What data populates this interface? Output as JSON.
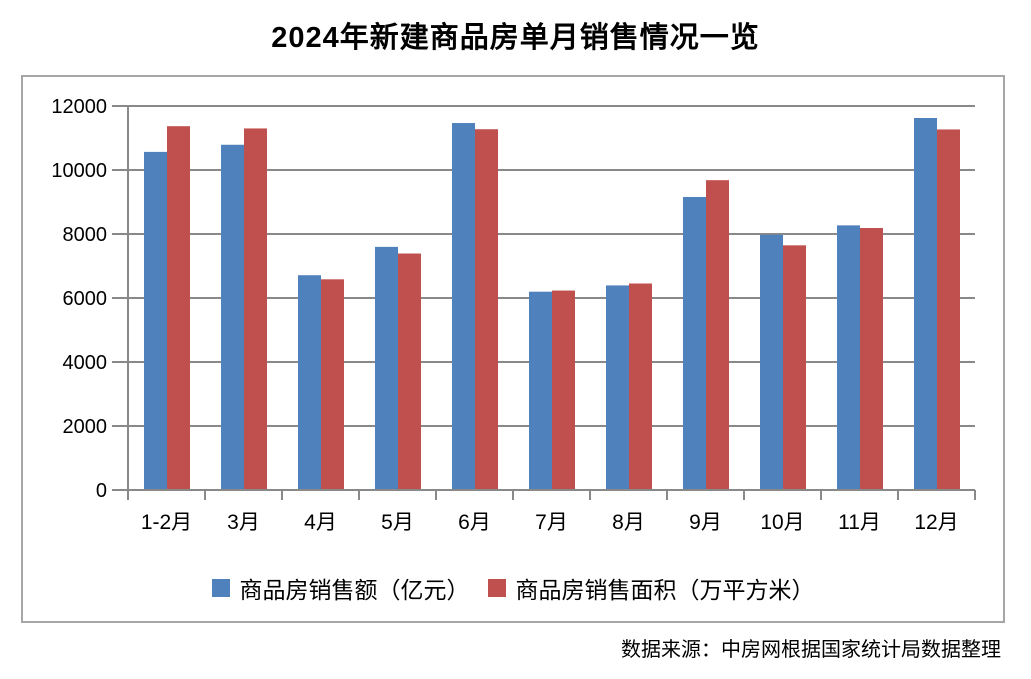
{
  "page": {
    "title": "2024年新建商品房单月销售情况一览",
    "source_note": "数据来源：中房网根据国家统计局数据整理"
  },
  "colors": {
    "series1_blue": "#4F81BD",
    "series2_red": "#C0504D",
    "gridline_gray": "#898989",
    "axis_gray": "#898989",
    "chart_border_gray": "#A6A6A6",
    "text_black": "#000000",
    "background_white": "#FFFFFF"
  },
  "chart_data": {
    "type": "bar",
    "title": "2024年新建商品房单月销售情况一览",
    "categories": [
      "1-2月",
      "3月",
      "4月",
      "5月",
      "6月",
      "7月",
      "8月",
      "9月",
      "10月",
      "11月",
      "12月"
    ],
    "series": [
      {
        "name": "商品房销售额（亿元）",
        "color": "#4F81BD",
        "values": [
          10566,
          10789,
          6712,
          7598,
          11468,
          6197,
          6393,
          9157,
          7975,
          8270,
          11625
        ]
      },
      {
        "name": "商品房销售面积（万平方米）",
        "color": "#C0504D",
        "values": [
          11369,
          11299,
          6584,
          7390,
          11274,
          6233,
          6453,
          9682,
          7646,
          8188,
          11267
        ]
      }
    ],
    "ylim": [
      0,
      12000
    ],
    "yticks": [
      0,
      2000,
      4000,
      6000,
      8000,
      10000,
      12000
    ],
    "xlabel": "",
    "ylabel": "",
    "grid": true,
    "legend_position": "bottom",
    "source": "数据来源：中房网根据国家统计局数据整理"
  }
}
